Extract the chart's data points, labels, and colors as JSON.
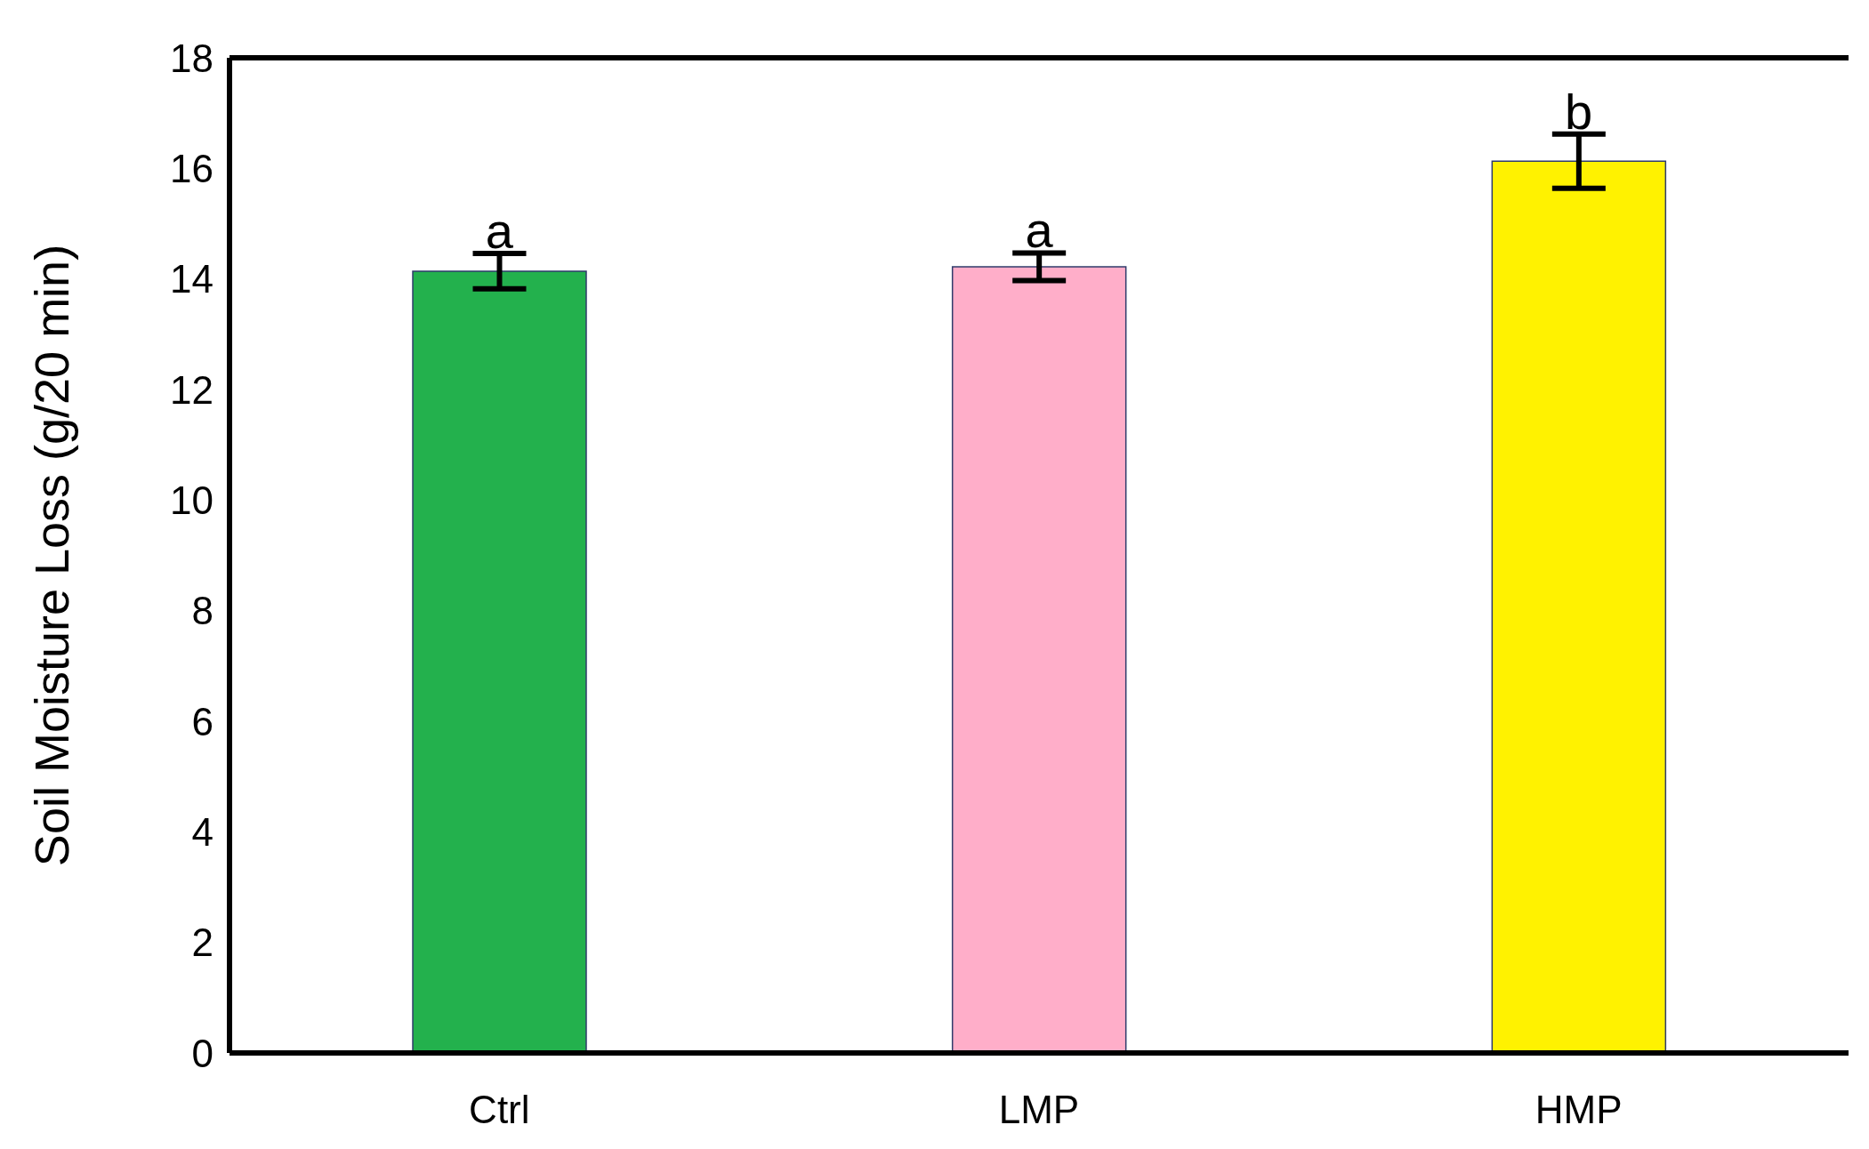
{
  "chart_data": {
    "type": "bar",
    "ylabel": "Soil Moisture Loss (g/20 min)",
    "categories": [
      "Ctrl",
      "LMP",
      "HMP"
    ],
    "values": [
      14.14,
      14.22,
      16.13
    ],
    "errors": [
      0.32,
      0.25,
      0.49
    ],
    "colors": [
      "#23b14d",
      "#ffaec9",
      "#fff200"
    ],
    "ylim": [
      0,
      18
    ],
    "yticks": [
      0,
      2,
      4,
      6,
      8,
      10,
      12,
      14,
      16,
      18
    ],
    "grid": false,
    "legend": false,
    "annotations": [
      {
        "text": "a",
        "x": "Ctrl",
        "y": 14.46
      },
      {
        "text": "a",
        "x": "LMP",
        "y": 14.47
      },
      {
        "text": "b",
        "x": "HMP",
        "y": 16.62
      }
    ]
  }
}
